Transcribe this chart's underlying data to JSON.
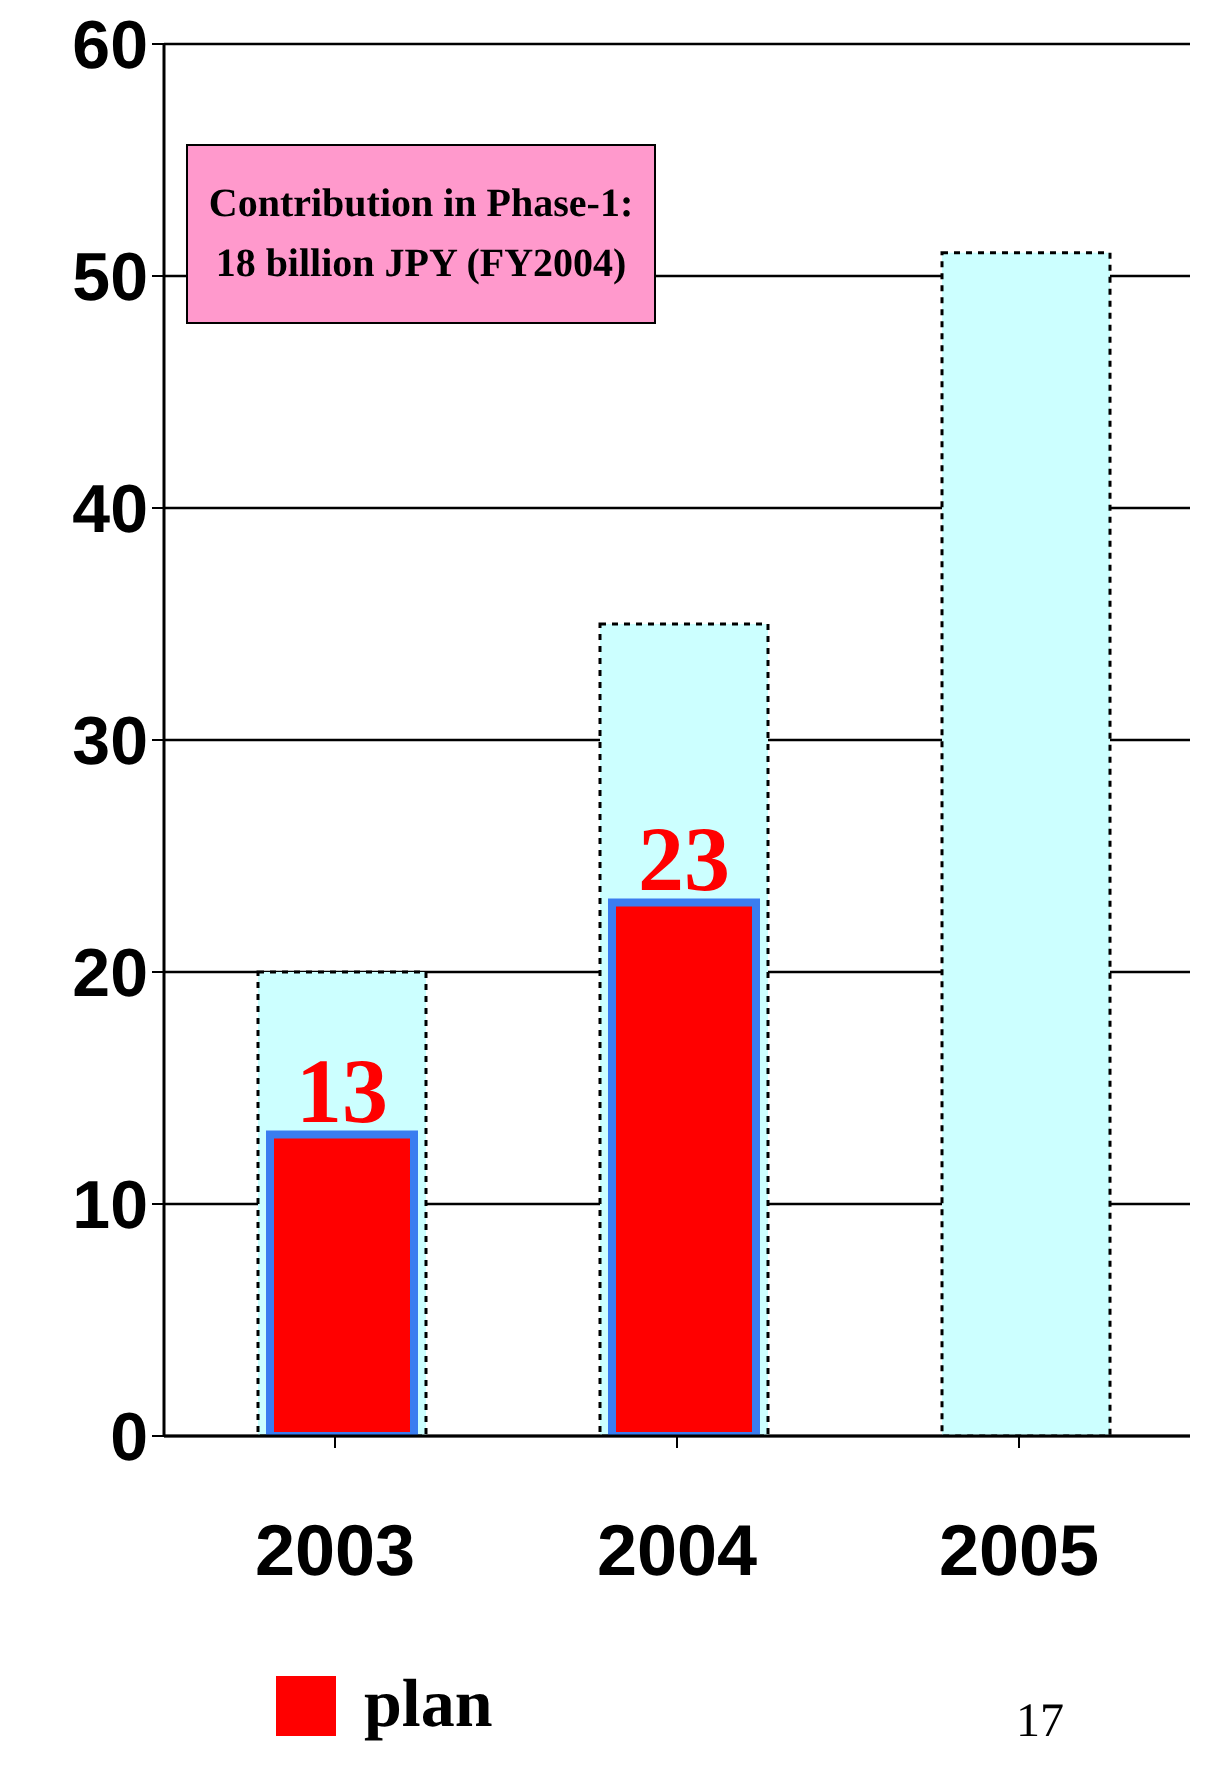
{
  "chart_data": {
    "type": "bar",
    "categories": [
      "2003",
      "2004",
      "2005"
    ],
    "series": [
      {
        "color": "#ccffff",
        "values": [
          20,
          35,
          51
        ],
        "line_style": "dotted"
      },
      {
        "name": "plan",
        "color": "#ff0000",
        "values": [
          13,
          23,
          null
        ],
        "value_labels": [
          "13",
          "23",
          null
        ]
      }
    ],
    "ylim": [
      0,
      60
    ],
    "yticks": [
      0,
      10,
      20,
      30,
      40,
      50,
      60
    ],
    "grid": "y",
    "legend": "bottom",
    "annotations": [
      "Contribution in Phase-1:\n18 billion JPY (FY2004)",
      "17"
    ]
  }
}
